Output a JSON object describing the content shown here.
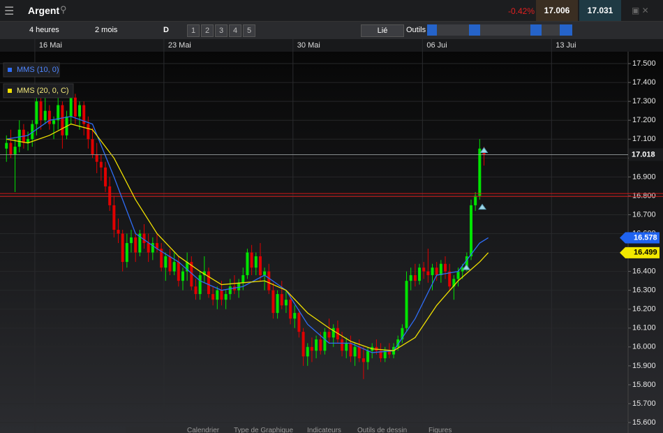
{
  "header": {
    "instrument": "Argent",
    "change": "-0.42%",
    "sell": "17.006",
    "buy": "17.031"
  },
  "toolbar": {
    "interval": "4 heures",
    "range": "2 mois",
    "mode": "D",
    "slots": [
      "1",
      "2",
      "3",
      "4",
      "5"
    ],
    "link": "Lié",
    "tools": "Outils"
  },
  "bottom_bar": {
    "items": [
      "Calendrier",
      "Type de Graphique",
      "Indicateurs",
      "Outils de dessin",
      "Figures"
    ]
  },
  "chart_data": {
    "type": "candlestick",
    "up_color": "#00e400",
    "down_color": "#e00000",
    "grid": true,
    "xlim": [
      -1.5,
      144.5
    ],
    "xticks": [
      {
        "value": 6.6,
        "label": "16 Mai"
      },
      {
        "value": 36.6,
        "label": "23 Mai"
      },
      {
        "value": 66.6,
        "label": "30 Mai"
      },
      {
        "value": 96.7,
        "label": "06 Jui"
      },
      {
        "value": 126.7,
        "label": "13 Jui"
      }
    ],
    "ylim": [
      15.6,
      17.563
    ],
    "yticks": [
      {
        "value": 17.5,
        "label": "17.500"
      },
      {
        "value": 17.4,
        "label": "17.400"
      },
      {
        "value": 17.3,
        "label": "17.300"
      },
      {
        "value": 17.2,
        "label": "17.200"
      },
      {
        "value": 17.1,
        "label": "17.100"
      },
      {
        "value": 17.0,
        "label": "17.000"
      },
      {
        "value": 16.9,
        "label": "16.900"
      },
      {
        "value": 16.8,
        "label": "16.800"
      },
      {
        "value": 16.7,
        "label": "16.700"
      },
      {
        "value": 16.6,
        "label": "16.600"
      },
      {
        "value": 16.5,
        "label": "16.500"
      },
      {
        "value": 16.4,
        "label": "16.400"
      },
      {
        "value": 16.3,
        "label": "16.300"
      },
      {
        "value": 16.2,
        "label": "16.200"
      },
      {
        "value": 16.1,
        "label": "16.100"
      },
      {
        "value": 16.0,
        "label": "16.000"
      },
      {
        "value": 15.9,
        "label": "15.900"
      },
      {
        "value": 15.8,
        "label": "15.800"
      },
      {
        "value": 15.7,
        "label": "15.700"
      },
      {
        "value": 15.6,
        "label": "15.600"
      }
    ],
    "ohlc": [
      [
        17.05,
        17.12,
        16.98,
        17.08
      ],
      [
        17.08,
        17.15,
        17.0,
        17.02
      ],
      [
        17.02,
        17.1,
        16.82,
        17.06
      ],
      [
        17.06,
        17.2,
        17.03,
        17.15
      ],
      [
        17.15,
        17.18,
        17.05,
        17.08
      ],
      [
        17.08,
        17.14,
        17.04,
        17.1
      ],
      [
        17.1,
        17.2,
        17.06,
        17.18
      ],
      [
        17.18,
        17.35,
        17.12,
        17.3
      ],
      [
        17.3,
        17.33,
        17.15,
        17.2
      ],
      [
        17.2,
        17.34,
        17.18,
        17.25
      ],
      [
        17.25,
        17.28,
        17.15,
        17.18
      ],
      [
        17.18,
        17.22,
        17.1,
        17.2
      ],
      [
        17.2,
        17.32,
        17.15,
        17.28
      ],
      [
        17.28,
        17.3,
        17.05,
        17.12
      ],
      [
        17.12,
        17.25,
        17.1,
        17.22
      ],
      [
        17.22,
        17.36,
        17.18,
        17.32
      ],
      [
        17.32,
        17.34,
        17.18,
        17.22
      ],
      [
        17.22,
        17.3,
        17.15,
        17.28
      ],
      [
        17.28,
        17.3,
        17.12,
        17.18
      ],
      [
        17.18,
        17.22,
        17.05,
        17.1
      ],
      [
        17.1,
        17.16,
        17.0,
        17.02
      ],
      [
        17.02,
        17.08,
        16.92,
        16.98
      ],
      [
        16.98,
        17.02,
        16.88,
        16.95
      ],
      [
        16.95,
        16.98,
        16.82,
        16.85
      ],
      [
        16.85,
        16.9,
        16.72,
        16.75
      ],
      [
        16.75,
        16.8,
        16.58,
        16.62
      ],
      [
        16.62,
        16.68,
        16.55,
        16.6
      ],
      [
        16.6,
        16.62,
        16.4,
        16.45
      ],
      [
        16.45,
        16.6,
        16.42,
        16.55
      ],
      [
        16.55,
        16.62,
        16.5,
        16.58
      ],
      [
        16.58,
        16.6,
        16.45,
        16.5
      ],
      [
        16.5,
        16.62,
        16.48,
        16.6
      ],
      [
        16.6,
        16.65,
        16.52,
        16.55
      ],
      [
        16.55,
        16.6,
        16.45,
        16.5
      ],
      [
        16.5,
        16.58,
        16.46,
        16.55
      ],
      [
        16.55,
        16.6,
        16.5,
        16.52
      ],
      [
        16.52,
        16.55,
        16.4,
        16.42
      ],
      [
        16.42,
        16.5,
        16.35,
        16.48
      ],
      [
        16.48,
        16.52,
        16.38,
        16.4
      ],
      [
        16.4,
        16.5,
        16.38,
        16.45
      ],
      [
        16.45,
        16.48,
        16.32,
        16.35
      ],
      [
        16.35,
        16.42,
        16.3,
        16.4
      ],
      [
        16.4,
        16.5,
        16.35,
        16.45
      ],
      [
        16.45,
        16.48,
        16.3,
        16.32
      ],
      [
        16.32,
        16.36,
        16.25,
        16.28
      ],
      [
        16.28,
        16.4,
        16.25,
        16.38
      ],
      [
        16.38,
        16.48,
        16.34,
        16.4
      ],
      [
        16.4,
        16.42,
        16.26,
        16.28
      ],
      [
        16.28,
        16.32,
        16.22,
        16.25
      ],
      [
        16.25,
        16.32,
        16.2,
        16.3
      ],
      [
        16.3,
        16.35,
        16.22,
        16.25
      ],
      [
        16.25,
        16.3,
        16.2,
        16.28
      ],
      [
        16.28,
        16.36,
        16.25,
        16.32
      ],
      [
        16.32,
        16.38,
        16.28,
        16.3
      ],
      [
        16.3,
        16.36,
        16.26,
        16.34
      ],
      [
        16.34,
        16.42,
        16.3,
        16.38
      ],
      [
        16.38,
        16.52,
        16.36,
        16.5
      ],
      [
        16.5,
        16.54,
        16.38,
        16.42
      ],
      [
        16.42,
        16.5,
        16.38,
        16.48
      ],
      [
        16.48,
        16.55,
        16.35,
        16.38
      ],
      [
        16.38,
        16.42,
        16.3,
        16.4
      ],
      [
        16.4,
        16.44,
        16.28,
        16.3
      ],
      [
        16.3,
        16.34,
        16.15,
        16.18
      ],
      [
        16.18,
        16.3,
        16.15,
        16.28
      ],
      [
        16.28,
        16.35,
        16.2,
        16.22
      ],
      [
        16.22,
        16.3,
        16.18,
        16.25
      ],
      [
        16.25,
        16.28,
        16.12,
        16.15
      ],
      [
        16.15,
        16.22,
        16.1,
        16.18
      ],
      [
        16.18,
        16.2,
        16.05,
        16.08
      ],
      [
        16.08,
        16.1,
        15.9,
        15.95
      ],
      [
        15.95,
        16.02,
        15.9,
        16.0
      ],
      [
        16.0,
        16.05,
        15.92,
        15.98
      ],
      [
        15.98,
        16.06,
        15.94,
        16.04
      ],
      [
        16.04,
        16.08,
        15.96,
        15.98
      ],
      [
        15.98,
        16.1,
        15.96,
        16.08
      ],
      [
        16.08,
        16.15,
        16.02,
        16.05
      ],
      [
        16.05,
        16.12,
        16.0,
        16.1
      ],
      [
        16.1,
        16.14,
        16.02,
        16.04
      ],
      [
        16.04,
        16.08,
        15.95,
        15.98
      ],
      [
        15.98,
        16.05,
        15.94,
        16.02
      ],
      [
        16.02,
        16.06,
        15.92,
        15.95
      ],
      [
        15.95,
        16.02,
        15.9,
        16.0
      ],
      [
        16.0,
        16.04,
        15.92,
        15.94
      ],
      [
        15.94,
        16.0,
        15.83,
        15.92
      ],
      [
        15.92,
        16.0,
        15.88,
        15.98
      ],
      [
        15.98,
        16.02,
        15.94,
        16.0
      ],
      [
        16.0,
        16.04,
        15.96,
        15.98
      ],
      [
        15.98,
        16.02,
        15.92,
        15.94
      ],
      [
        15.94,
        16.0,
        15.92,
        15.98
      ],
      [
        15.98,
        16.02,
        15.94,
        15.96
      ],
      [
        15.96,
        16.02,
        15.94,
        16.0
      ],
      [
        16.0,
        16.06,
        15.98,
        16.04
      ],
      [
        16.04,
        16.12,
        16.02,
        16.1
      ],
      [
        16.1,
        16.4,
        16.08,
        16.35
      ],
      [
        16.35,
        16.42,
        16.3,
        16.38
      ],
      [
        16.38,
        16.44,
        16.32,
        16.35
      ],
      [
        16.35,
        16.44,
        16.33,
        16.42
      ],
      [
        16.42,
        16.45,
        16.36,
        16.4
      ],
      [
        16.4,
        16.52,
        16.34,
        16.38
      ],
      [
        16.38,
        16.44,
        16.3,
        16.42
      ],
      [
        16.42,
        16.45,
        16.35,
        16.38
      ],
      [
        16.38,
        16.46,
        16.34,
        16.44
      ],
      [
        16.44,
        16.48,
        16.36,
        16.4
      ],
      [
        16.4,
        16.44,
        16.3,
        16.32
      ],
      [
        16.32,
        16.38,
        16.25,
        16.36
      ],
      [
        16.36,
        16.42,
        16.32,
        16.4
      ],
      [
        16.4,
        16.44,
        16.36,
        16.42
      ],
      [
        16.42,
        16.5,
        16.4,
        16.48
      ],
      [
        16.48,
        16.78,
        16.46,
        16.75
      ],
      [
        16.75,
        16.82,
        16.72,
        16.8
      ],
      [
        16.8,
        17.1,
        16.78,
        17.05
      ],
      [
        17.05,
        17.06,
        16.96,
        17.018
      ]
    ],
    "series": [
      {
        "name": "MMS (10, 0)",
        "color": "#2f6df6",
        "x": [
          0,
          5,
          10,
          15,
          20,
          25,
          30,
          35,
          40,
          45,
          50,
          55,
          60,
          65,
          70,
          75,
          80,
          85,
          90,
          95,
          100,
          105,
          110,
          112
        ],
        "values": [
          17.1,
          17.12,
          17.2,
          17.22,
          17.18,
          16.9,
          16.6,
          16.52,
          16.45,
          16.35,
          16.3,
          16.32,
          16.38,
          16.3,
          16.12,
          16.02,
          16.02,
          15.97,
          15.98,
          16.15,
          16.38,
          16.4,
          16.55,
          16.578
        ],
        "last_label": "16.578"
      },
      {
        "name": "MMS (20, 0, C)",
        "color": "#f0e000",
        "x": [
          0,
          5,
          10,
          15,
          20,
          25,
          30,
          35,
          40,
          45,
          50,
          55,
          60,
          65,
          70,
          75,
          80,
          85,
          90,
          95,
          100,
          105,
          110,
          112
        ],
        "values": [
          17.1,
          17.08,
          17.12,
          17.18,
          17.15,
          17.0,
          16.78,
          16.6,
          16.48,
          16.4,
          16.33,
          16.34,
          16.35,
          16.3,
          16.18,
          16.1,
          16.03,
          15.99,
          15.98,
          16.05,
          16.22,
          16.35,
          16.45,
          16.499
        ],
        "last_label": "16.499"
      }
    ],
    "current": {
      "value": 17.018,
      "label": "17.018"
    },
    "levels": [
      16.812,
      16.797
    ],
    "markers": [
      {
        "x": 111,
        "value": 17.04
      },
      {
        "x": 110.6,
        "value": 16.74
      },
      {
        "x": 106.9,
        "value": 16.42
      }
    ]
  }
}
